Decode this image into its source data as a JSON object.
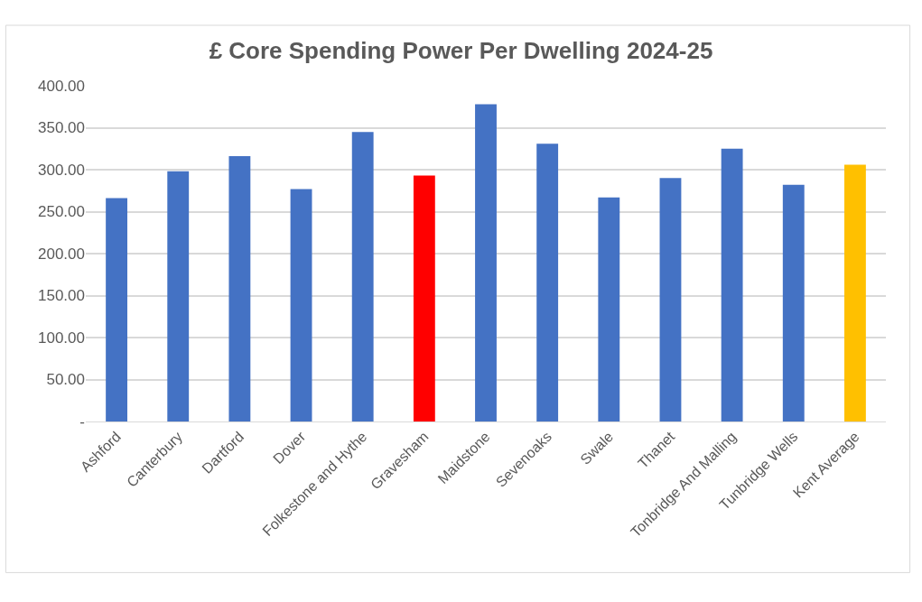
{
  "chart_data": {
    "type": "bar",
    "title": "£ Core Spending Power Per Dwelling 2024-25",
    "categories": [
      "Ashford",
      "Canterbury",
      "Dartford",
      "Dover",
      "Folkestone and Hythe",
      "Gravesham",
      "Maidstone",
      "Sevenoaks",
      "Swale",
      "Thanet",
      "Tonbridge And Malling",
      "Tunbridge Wells",
      "Kent Average"
    ],
    "values": [
      266,
      298,
      316,
      277,
      345,
      293,
      378,
      331,
      267,
      290,
      325,
      282,
      306
    ],
    "colors": [
      "#4472c4",
      "#4472c4",
      "#4472c4",
      "#4472c4",
      "#4472c4",
      "#ff0000",
      "#4472c4",
      "#4472c4",
      "#4472c4",
      "#4472c4",
      "#4472c4",
      "#4472c4",
      "#ffc000"
    ],
    "ylim": [
      0,
      400
    ],
    "yticks": [
      {
        "value": 0,
        "label": "-"
      },
      {
        "value": 50,
        "label": "50.00"
      },
      {
        "value": 100,
        "label": "100.00"
      },
      {
        "value": 150,
        "label": "150.00"
      },
      {
        "value": 200,
        "label": "200.00"
      },
      {
        "value": 250,
        "label": "250.00"
      },
      {
        "value": 300,
        "label": "300.00"
      },
      {
        "value": 350,
        "label": "350.00"
      },
      {
        "value": 400,
        "label": "400.00"
      }
    ],
    "grid": "y"
  }
}
